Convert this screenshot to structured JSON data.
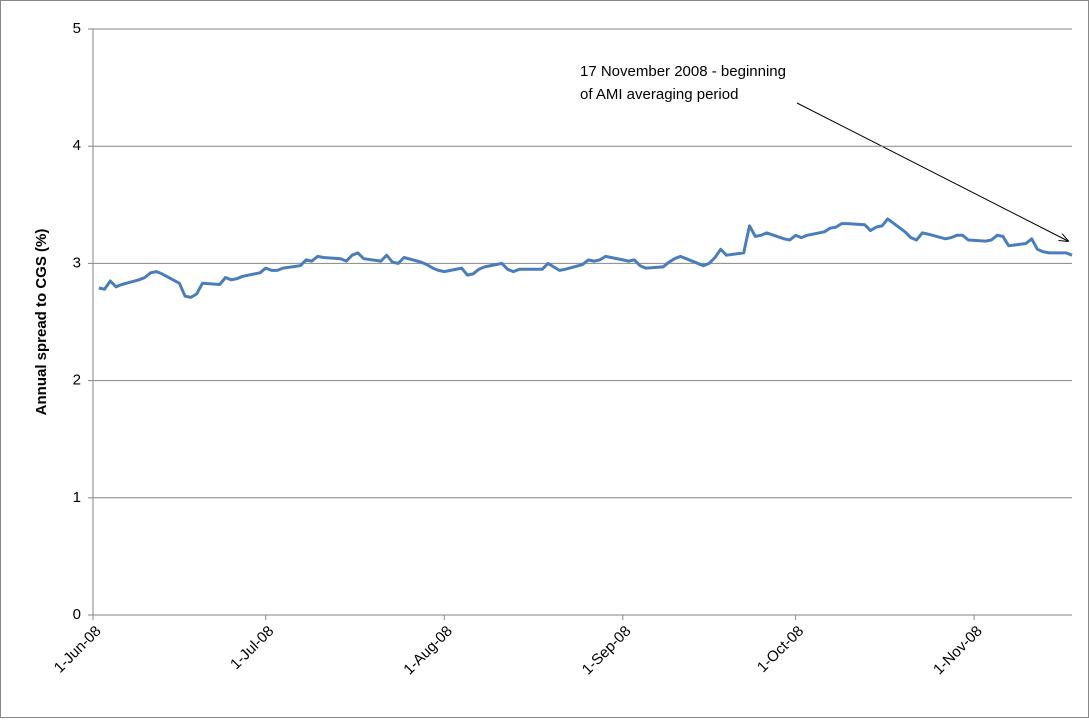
{
  "chart_data": {
    "type": "line",
    "y_label": "Annual spread to CGS (%)",
    "annotation": [
      "17 November 2008 - beginning",
      "of AMI averaging period"
    ],
    "color": "#4a7ebb",
    "grid": true,
    "ylim": [
      0,
      5
    ],
    "yticks": [
      0,
      1,
      2,
      3,
      4,
      5
    ],
    "xlim": [
      "2008-06-01",
      "2008-11-18"
    ],
    "xticks": [
      {
        "value": "2008-06-01",
        "label": "1-Jun-08"
      },
      {
        "value": "2008-07-01",
        "label": "1-Jul-08"
      },
      {
        "value": "2008-08-01",
        "label": "1-Aug-08"
      },
      {
        "value": "2008-09-01",
        "label": "1-Sep-08"
      },
      {
        "value": "2008-10-01",
        "label": "1-Oct-08"
      },
      {
        "value": "2008-11-01",
        "label": "1-Nov-08"
      }
    ],
    "x": [
      "2008-06-02",
      "2008-06-03",
      "2008-06-04",
      "2008-06-05",
      "2008-06-06",
      "2008-06-09",
      "2008-06-10",
      "2008-06-11",
      "2008-06-12",
      "2008-06-13",
      "2008-06-16",
      "2008-06-17",
      "2008-06-18",
      "2008-06-19",
      "2008-06-20",
      "2008-06-23",
      "2008-06-24",
      "2008-06-25",
      "2008-06-26",
      "2008-06-27",
      "2008-06-30",
      "2008-07-01",
      "2008-07-02",
      "2008-07-03",
      "2008-07-04",
      "2008-07-07",
      "2008-07-08",
      "2008-07-09",
      "2008-07-10",
      "2008-07-11",
      "2008-07-14",
      "2008-07-15",
      "2008-07-16",
      "2008-07-17",
      "2008-07-18",
      "2008-07-21",
      "2008-07-22",
      "2008-07-23",
      "2008-07-24",
      "2008-07-25",
      "2008-07-28",
      "2008-07-29",
      "2008-07-30",
      "2008-07-31",
      "2008-08-01",
      "2008-08-04",
      "2008-08-05",
      "2008-08-06",
      "2008-08-07",
      "2008-08-08",
      "2008-08-11",
      "2008-08-12",
      "2008-08-13",
      "2008-08-14",
      "2008-08-15",
      "2008-08-18",
      "2008-08-19",
      "2008-08-20",
      "2008-08-21",
      "2008-08-22",
      "2008-08-25",
      "2008-08-26",
      "2008-08-27",
      "2008-08-28",
      "2008-08-29",
      "2008-09-01",
      "2008-09-02",
      "2008-09-03",
      "2008-09-04",
      "2008-09-05",
      "2008-09-08",
      "2008-09-09",
      "2008-09-10",
      "2008-09-11",
      "2008-09-12",
      "2008-09-15",
      "2008-09-16",
      "2008-09-17",
      "2008-09-18",
      "2008-09-19",
      "2008-09-22",
      "2008-09-23",
      "2008-09-24",
      "2008-09-25",
      "2008-09-26",
      "2008-09-29",
      "2008-09-30",
      "2008-10-01",
      "2008-10-02",
      "2008-10-03",
      "2008-10-06",
      "2008-10-07",
      "2008-10-08",
      "2008-10-09",
      "2008-10-10",
      "2008-10-13",
      "2008-10-14",
      "2008-10-15",
      "2008-10-16",
      "2008-10-17",
      "2008-10-20",
      "2008-10-21",
      "2008-10-22",
      "2008-10-23",
      "2008-10-24",
      "2008-10-27",
      "2008-10-28",
      "2008-10-29",
      "2008-10-30",
      "2008-10-31",
      "2008-11-03",
      "2008-11-04",
      "2008-11-05",
      "2008-11-06",
      "2008-11-07",
      "2008-11-10",
      "2008-11-11",
      "2008-11-12",
      "2008-11-13",
      "2008-11-14",
      "2008-11-17",
      "2008-11-18"
    ],
    "values": [
      2.79,
      2.78,
      2.85,
      2.8,
      2.82,
      2.86,
      2.88,
      2.92,
      2.93,
      2.91,
      2.83,
      2.72,
      2.71,
      2.74,
      2.83,
      2.82,
      2.88,
      2.86,
      2.87,
      2.89,
      2.92,
      2.96,
      2.94,
      2.94,
      2.96,
      2.98,
      3.03,
      3.02,
      3.06,
      3.05,
      3.04,
      3.02,
      3.07,
      3.09,
      3.04,
      3.02,
      3.07,
      3.01,
      3.0,
      3.05,
      3.01,
      2.99,
      2.96,
      2.94,
      2.93,
      2.96,
      2.9,
      2.91,
      2.95,
      2.97,
      3.0,
      2.95,
      2.93,
      2.95,
      2.95,
      2.95,
      3.0,
      2.97,
      2.94,
      2.95,
      2.99,
      3.03,
      3.02,
      3.03,
      3.06,
      3.03,
      3.02,
      3.03,
      2.98,
      2.96,
      2.97,
      3.01,
      3.04,
      3.06,
      3.04,
      2.98,
      3.0,
      3.05,
      3.12,
      3.07,
      3.09,
      3.32,
      3.23,
      3.24,
      3.26,
      3.21,
      3.2,
      3.24,
      3.22,
      3.24,
      3.27,
      3.3,
      3.31,
      3.34,
      3.34,
      3.33,
      3.28,
      3.31,
      3.32,
      3.38,
      3.27,
      3.22,
      3.2,
      3.26,
      3.25,
      3.21,
      3.22,
      3.24,
      3.24,
      3.2,
      3.19,
      3.2,
      3.24,
      3.23,
      3.15,
      3.17,
      3.21,
      3.12,
      3.1,
      3.09,
      3.09,
      3.07
    ]
  }
}
